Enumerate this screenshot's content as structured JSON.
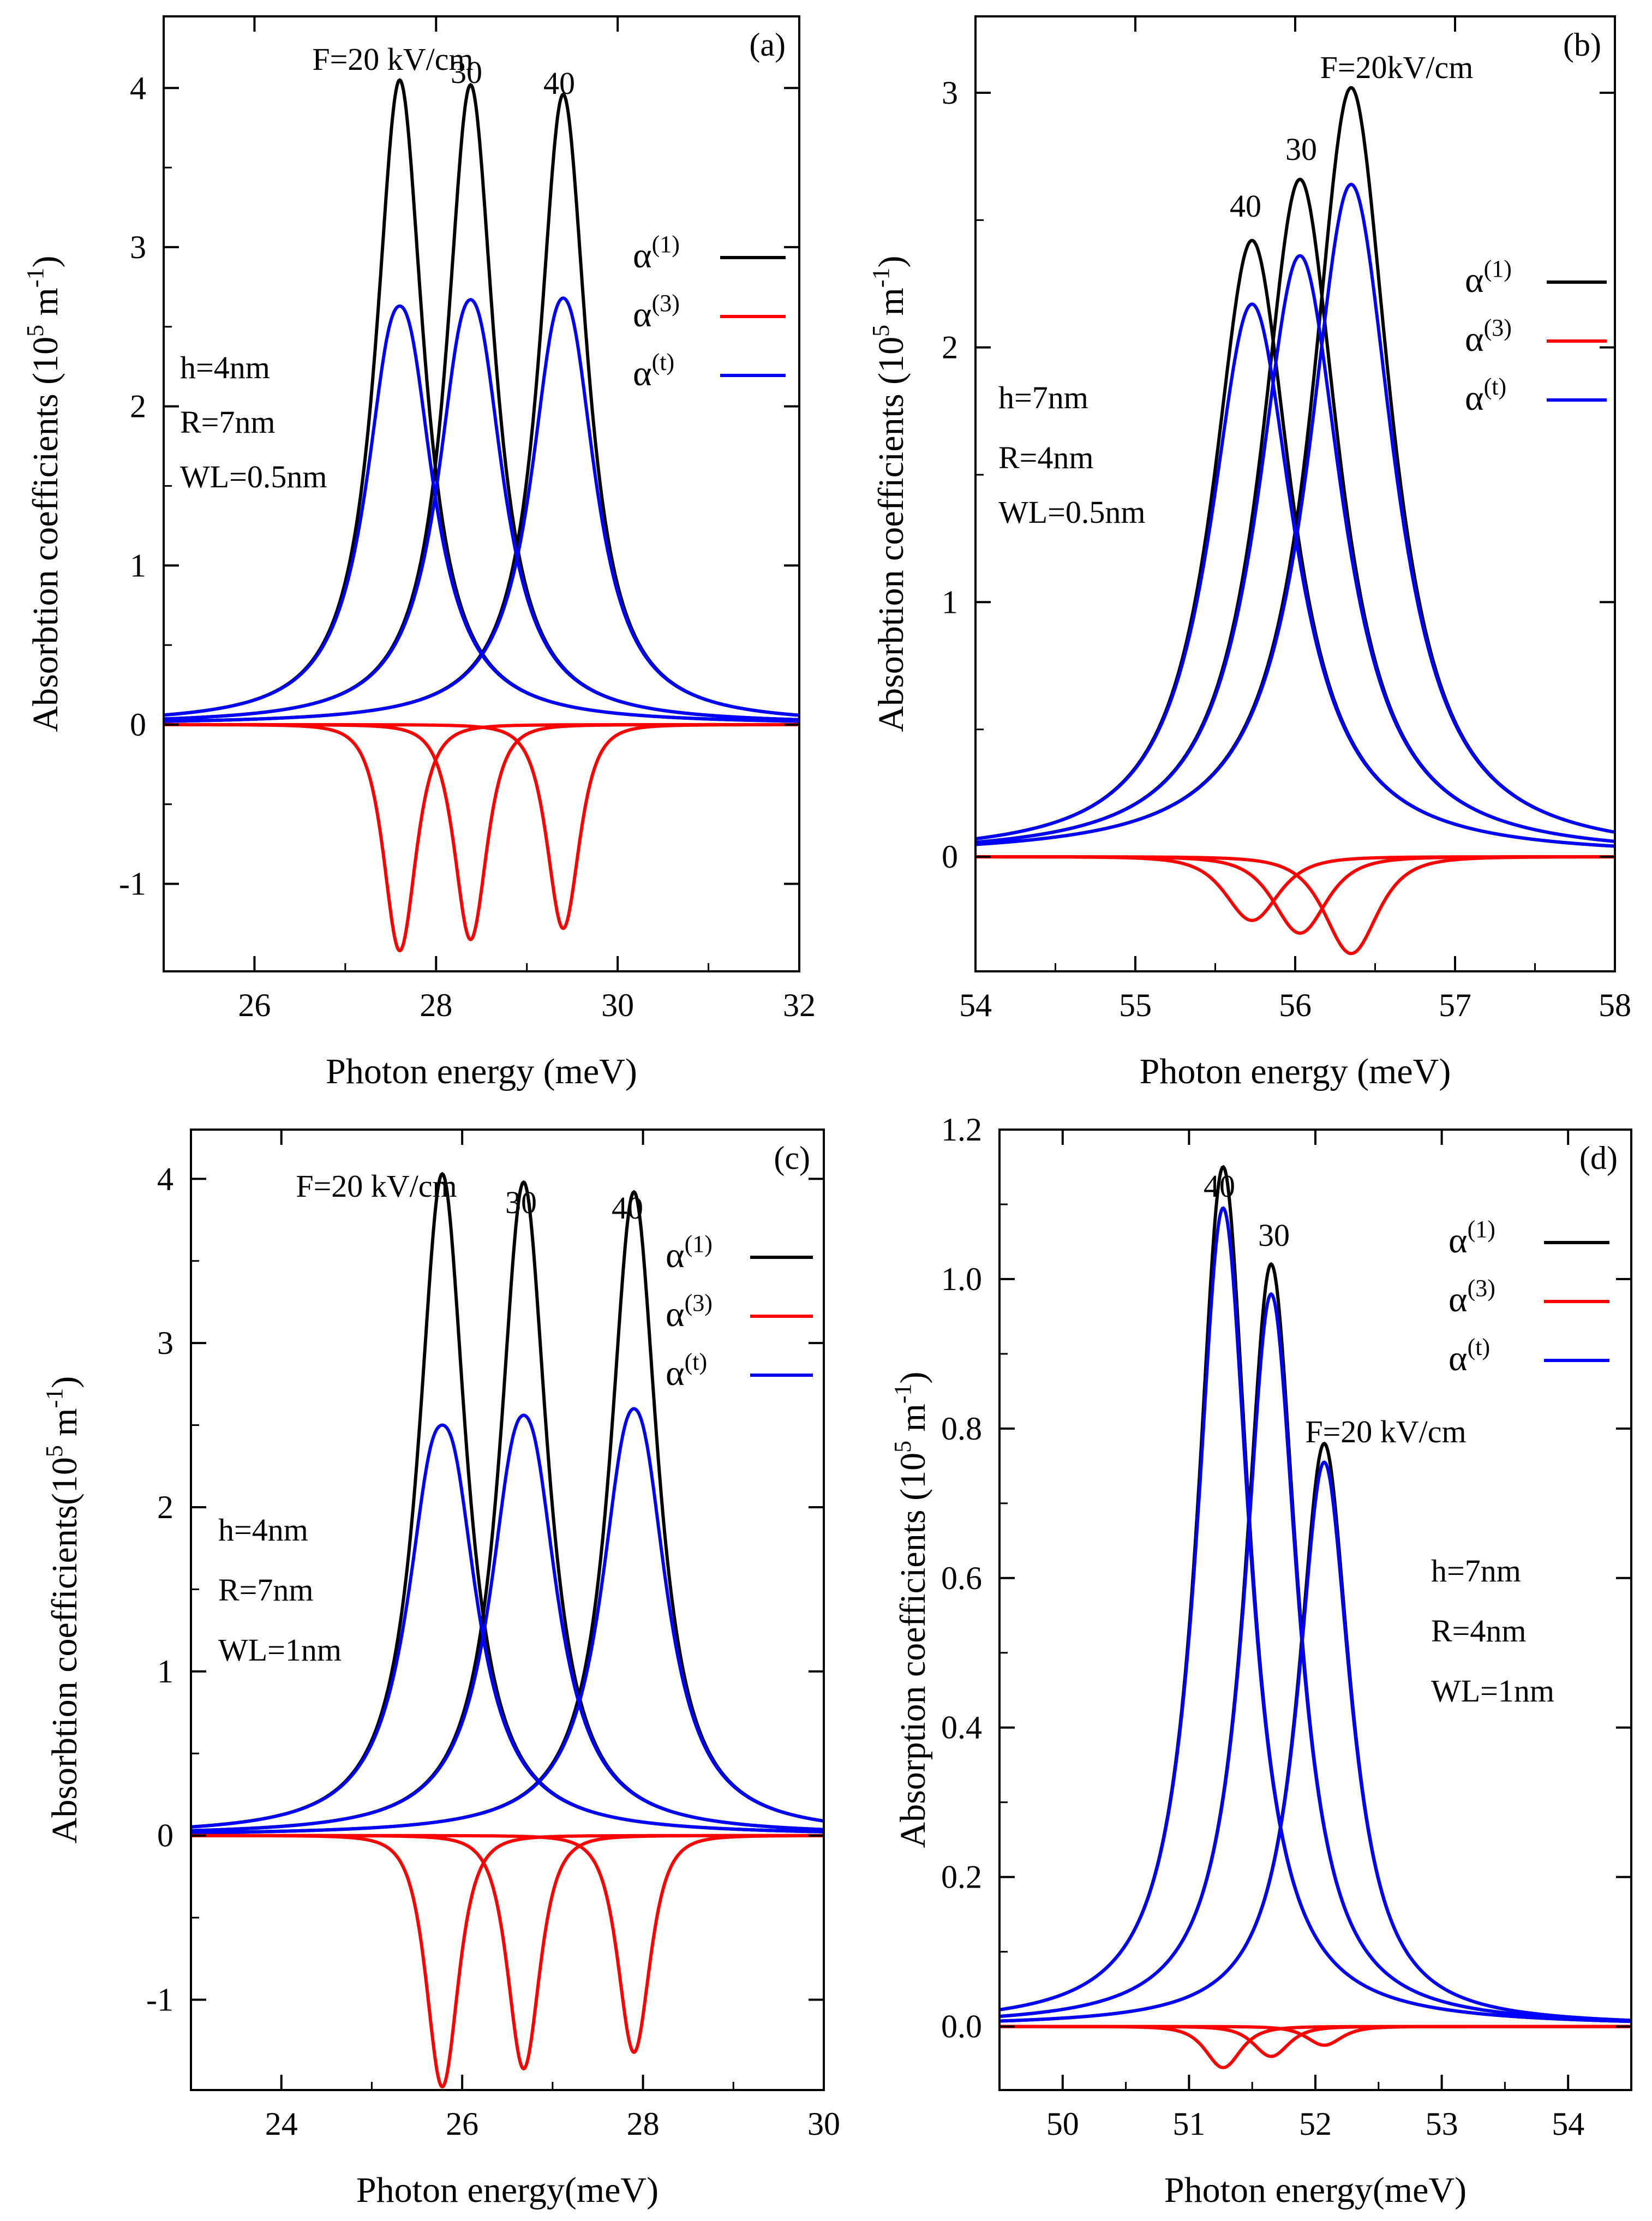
{
  "figure": {
    "description_title": "Absorption coefficients vs photon energy for several electric fields"
  },
  "colors": {
    "alpha1": "#000000",
    "alpha3": "#ff0000",
    "alphat": "#0000ff"
  },
  "chart_data": [
    {
      "type": "line",
      "panel": "(a)",
      "xlabel": "Photon energy (meV)",
      "ylabel": "Absorbtion coefficients  (10^5 m^-1)",
      "ylabel_prefix": "Absorbtion coefficients  (10",
      "ylabel_exp1": "5",
      "ylabel_mid": " m",
      "ylabel_exp2": "-1",
      "ylabel_suffix": ")",
      "xlim": [
        25,
        32
      ],
      "ylim": [
        -1.55,
        4.45
      ],
      "xticks": [
        26,
        28,
        30,
        32
      ],
      "xtick_labels": [
        "26",
        "28",
        "30",
        "32"
      ],
      "yticks": [
        -1,
        0,
        1,
        2,
        3,
        4
      ],
      "ytick_labels": [
        "-1",
        "0",
        "1",
        "2",
        "3",
        "4"
      ],
      "legend": {
        "placement": "right",
        "labels": [
          "α(1)",
          "α(3)",
          "α(t)"
        ],
        "base": "α",
        "sups": [
          "(1)",
          "(3)",
          "(t)"
        ]
      },
      "annotations": [
        "F=20 kV/cm",
        "30",
        "40"
      ],
      "params": [
        "h=4nm",
        "R=7nm",
        "WL=0.5nm"
      ],
      "series": [
        {
          "name": "α(1) F=20",
          "kind": "lorentz",
          "color": "alpha1",
          "center": 27.6,
          "peak": 4.05,
          "gamma": 0.32
        },
        {
          "name": "α(1) F=30",
          "kind": "lorentz",
          "color": "alpha1",
          "center": 28.38,
          "peak": 4.02,
          "gamma": 0.32
        },
        {
          "name": "α(1) F=40",
          "kind": "lorentz",
          "color": "alpha1",
          "center": 29.4,
          "peak": 3.96,
          "gamma": 0.32
        },
        {
          "name": "α(3) F=20",
          "kind": "neg",
          "color": "alpha3",
          "center": 27.6,
          "peak": -1.42,
          "gamma": 0.32
        },
        {
          "name": "α(3) F=30",
          "kind": "neg",
          "color": "alpha3",
          "center": 28.38,
          "peak": -1.35,
          "gamma": 0.32
        },
        {
          "name": "α(3) F=40",
          "kind": "neg",
          "color": "alpha3",
          "center": 29.4,
          "peak": -1.28,
          "gamma": 0.32
        },
        {
          "name": "α(t) F=20",
          "kind": "total",
          "color": "alphat",
          "center": 27.6,
          "peak": 4.05,
          "peak3": -1.42,
          "gamma": 0.32
        },
        {
          "name": "α(t) F=30",
          "kind": "total",
          "color": "alphat",
          "center": 28.38,
          "peak": 4.02,
          "peak3": -1.35,
          "gamma": 0.32
        },
        {
          "name": "α(t) F=40",
          "kind": "total",
          "color": "alphat",
          "center": 29.4,
          "peak": 3.96,
          "peak3": -1.28,
          "gamma": 0.32
        }
      ]
    },
    {
      "type": "line",
      "panel": "(b)",
      "xlabel": "Photon energy (meV)",
      "ylabel": "Absorbtion coefficients  (10^5 m^-1)",
      "ylabel_prefix": "Absorbtion coefficients  (10",
      "ylabel_exp1": "5",
      "ylabel_mid": " m",
      "ylabel_exp2": "-1",
      "ylabel_suffix": ")",
      "xlim": [
        54,
        58
      ],
      "ylim": [
        -0.45,
        3.3
      ],
      "xticks": [
        54,
        55,
        56,
        57,
        58
      ],
      "xtick_labels": [
        "54",
        "55",
        "56",
        "57",
        "58"
      ],
      "yticks": [
        0,
        1,
        2,
        3
      ],
      "ytick_labels": [
        "0",
        "1",
        "2",
        "3"
      ],
      "legend": {
        "placement": "right",
        "labels": [
          "α(1)",
          "α(3)",
          "α(t)"
        ],
        "base": "α",
        "sups": [
          "(1)",
          "(3)",
          "(t)"
        ]
      },
      "annotations": [
        "F=20kV/cm",
        "30",
        "40"
      ],
      "params": [
        "h=7nm",
        "R=4nm",
        "WL=0.5nm"
      ],
      "series": [
        {
          "name": "α(1) F=20",
          "kind": "lorentz",
          "color": "alpha1",
          "center": 56.35,
          "peak": 3.02,
          "gamma": 0.3
        },
        {
          "name": "α(1) F=30",
          "kind": "lorentz",
          "color": "alpha1",
          "center": 56.03,
          "peak": 2.66,
          "gamma": 0.3
        },
        {
          "name": "α(1) F=40",
          "kind": "lorentz",
          "color": "alpha1",
          "center": 55.73,
          "peak": 2.42,
          "gamma": 0.3
        },
        {
          "name": "α(3) F=20",
          "kind": "neg",
          "color": "alpha3",
          "center": 56.35,
          "peak": -0.38,
          "gamma": 0.3
        },
        {
          "name": "α(3) F=30",
          "kind": "neg",
          "color": "alpha3",
          "center": 56.03,
          "peak": -0.3,
          "gamma": 0.3
        },
        {
          "name": "α(3) F=40",
          "kind": "neg",
          "color": "alpha3",
          "center": 55.73,
          "peak": -0.25,
          "gamma": 0.3
        },
        {
          "name": "α(t) F=20",
          "kind": "total",
          "color": "alphat",
          "center": 56.35,
          "peak": 3.02,
          "peak3": -0.38,
          "gamma": 0.3
        },
        {
          "name": "α(t) F=30",
          "kind": "total",
          "color": "alphat",
          "center": 56.03,
          "peak": 2.66,
          "peak3": -0.3,
          "gamma": 0.3
        },
        {
          "name": "α(t) F=40",
          "kind": "total",
          "color": "alphat",
          "center": 55.73,
          "peak": 2.42,
          "peak3": -0.25,
          "gamma": 0.3
        }
      ]
    },
    {
      "type": "line",
      "panel": "(c)",
      "xlabel": "Photon energy(meV)",
      "ylabel": "Absorbtion coefficients(10^5 m^-1)",
      "ylabel_prefix": "Absorbtion coefficients(10",
      "ylabel_exp1": "5",
      "ylabel_mid": " m",
      "ylabel_exp2": "-1",
      "ylabel_suffix": ")",
      "xlim": [
        23,
        30
      ],
      "ylim": [
        -1.55,
        4.3
      ],
      "xticks": [
        24,
        26,
        28,
        30
      ],
      "xtick_labels": [
        "24",
        "26",
        "28",
        "30"
      ],
      "yticks": [
        -1,
        0,
        1,
        2,
        3,
        4
      ],
      "ytick_labels": [
        "-1",
        "0",
        "1",
        "2",
        "3",
        "4"
      ],
      "legend": {
        "placement": "right",
        "labels": [
          "α(1)",
          "α(3)",
          "α(t)"
        ],
        "base": "α",
        "sups": [
          "(1)",
          "(3)",
          "(t)"
        ]
      },
      "annotations": [
        "F=20 kV/cm",
        "30",
        "40"
      ],
      "params": [
        "h=4nm",
        "R=7nm",
        "WL=1nm"
      ],
      "series": [
        {
          "name": "α(1) F=20",
          "kind": "lorentz",
          "color": "alpha1",
          "center": 25.78,
          "peak": 4.03,
          "gamma": 0.32
        },
        {
          "name": "α(1) F=30",
          "kind": "lorentz",
          "color": "alpha1",
          "center": 26.68,
          "peak": 3.98,
          "gamma": 0.32
        },
        {
          "name": "α(1) F=40",
          "kind": "lorentz",
          "color": "alpha1",
          "center": 27.9,
          "peak": 3.92,
          "gamma": 0.32
        },
        {
          "name": "α(3) F=20",
          "kind": "neg",
          "color": "alpha3",
          "center": 25.78,
          "peak": -1.53,
          "gamma": 0.32
        },
        {
          "name": "α(3) F=30",
          "kind": "neg",
          "color": "alpha3",
          "center": 26.68,
          "peak": -1.42,
          "gamma": 0.32
        },
        {
          "name": "α(3) F=40",
          "kind": "neg",
          "color": "alpha3",
          "center": 27.9,
          "peak": -1.32,
          "gamma": 0.32
        },
        {
          "name": "α(t) F=20",
          "kind": "total",
          "color": "alphat",
          "center": 25.78,
          "peak": 4.03,
          "peak3": -1.53,
          "gamma": 0.32
        },
        {
          "name": "α(t) F=30",
          "kind": "total",
          "color": "alphat",
          "center": 26.68,
          "peak": 3.98,
          "peak3": -1.42,
          "gamma": 0.32
        },
        {
          "name": "α(t) F=40",
          "kind": "total",
          "color": "alphat",
          "center": 27.9,
          "peak": 3.92,
          "peak3": -1.32,
          "gamma": 0.32
        }
      ]
    },
    {
      "type": "line",
      "panel": "(d)",
      "xlabel": "Photon energy(meV)",
      "ylabel": "Absorption coefficients (10^5 m^-1)",
      "ylabel_prefix": "Absorption coefficients (10",
      "ylabel_exp1": "5",
      "ylabel_mid": " m",
      "ylabel_exp2": "-1",
      "ylabel_suffix": ")",
      "xlim": [
        49.5,
        54.5
      ],
      "ylim": [
        -0.085,
        1.2
      ],
      "xticks": [
        50,
        51,
        52,
        53,
        54
      ],
      "xtick_labels": [
        "50",
        "51",
        "52",
        "53",
        "54"
      ],
      "yticks": [
        0.0,
        0.2,
        0.4,
        0.6,
        0.8,
        1.0,
        1.2
      ],
      "ytick_labels": [
        "0.0",
        "0.2",
        "0.4",
        "0.6",
        "0.8",
        "1.0",
        "1.2"
      ],
      "legend": {
        "placement": "top-right",
        "labels": [
          "α(1)",
          "α(3)",
          "α(t)"
        ],
        "base": "α",
        "sups": [
          "(1)",
          "(3)",
          "(t)"
        ]
      },
      "annotations": [
        "40",
        "30",
        "F=20 kV/cm"
      ],
      "params": [
        "h=7nm",
        "R=4nm",
        "WL=1nm"
      ],
      "series": [
        {
          "name": "α(1) F=40",
          "kind": "lorentz",
          "color": "alpha1",
          "center": 51.27,
          "peak": 1.15,
          "gamma": 0.25
        },
        {
          "name": "α(1) F=30",
          "kind": "lorentz",
          "color": "alpha1",
          "center": 51.65,
          "peak": 1.02,
          "gamma": 0.25
        },
        {
          "name": "α(1) F=20",
          "kind": "lorentz",
          "color": "alpha1",
          "center": 52.07,
          "peak": 0.78,
          "gamma": 0.25
        },
        {
          "name": "α(3) F=40",
          "kind": "neg",
          "color": "alpha3",
          "center": 51.27,
          "peak": -0.055,
          "gamma": 0.25
        },
        {
          "name": "α(3) F=30",
          "kind": "neg",
          "color": "alpha3",
          "center": 51.65,
          "peak": -0.04,
          "gamma": 0.25
        },
        {
          "name": "α(3) F=20",
          "kind": "neg",
          "color": "alpha3",
          "center": 52.07,
          "peak": -0.025,
          "gamma": 0.25
        },
        {
          "name": "α(t) F=40",
          "kind": "total",
          "color": "alphat",
          "center": 51.27,
          "peak": 1.15,
          "peak3": -0.055,
          "gamma": 0.25
        },
        {
          "name": "α(t) F=30",
          "kind": "total",
          "color": "alphat",
          "center": 51.65,
          "peak": 1.02,
          "peak3": -0.04,
          "gamma": 0.25
        },
        {
          "name": "α(t) F=20",
          "kind": "total",
          "color": "alphat",
          "center": 52.07,
          "peak": 0.78,
          "peak3": -0.025,
          "gamma": 0.25
        }
      ]
    }
  ]
}
